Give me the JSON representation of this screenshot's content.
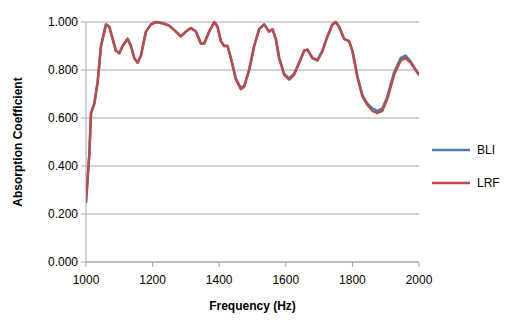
{
  "chart_data": {
    "type": "line",
    "x_label": "Frequency (Hz)",
    "y_label": "Absorption Coefficient",
    "x": [
      1000,
      1010,
      1015,
      1025,
      1035,
      1045,
      1060,
      1070,
      1080,
      1090,
      1100,
      1110,
      1125,
      1135,
      1145,
      1155,
      1165,
      1180,
      1195,
      1210,
      1230,
      1250,
      1270,
      1285,
      1300,
      1315,
      1330,
      1345,
      1355,
      1370,
      1385,
      1395,
      1405,
      1415,
      1425,
      1435,
      1450,
      1465,
      1475,
      1490,
      1505,
      1520,
      1535,
      1550,
      1560,
      1570,
      1580,
      1595,
      1610,
      1625,
      1640,
      1655,
      1665,
      1680,
      1695,
      1710,
      1725,
      1740,
      1750,
      1760,
      1775,
      1790,
      1800,
      1815,
      1830,
      1845,
      1860,
      1875,
      1890,
      1905,
      1925,
      1945,
      1960,
      1975,
      1990,
      2000
    ],
    "series": [
      {
        "name": "BLI",
        "color": "#4a7ebb",
        "values": [
          0.25,
          0.45,
          0.62,
          0.66,
          0.75,
          0.9,
          0.99,
          0.98,
          0.93,
          0.88,
          0.87,
          0.9,
          0.93,
          0.9,
          0.85,
          0.83,
          0.86,
          0.96,
          0.99,
          1.0,
          0.995,
          0.985,
          0.96,
          0.94,
          0.96,
          0.975,
          0.96,
          0.91,
          0.91,
          0.96,
          1.0,
          0.98,
          0.92,
          0.9,
          0.9,
          0.85,
          0.765,
          0.725,
          0.735,
          0.8,
          0.9,
          0.97,
          0.99,
          0.96,
          0.97,
          0.93,
          0.85,
          0.785,
          0.765,
          0.785,
          0.83,
          0.88,
          0.885,
          0.85,
          0.84,
          0.88,
          0.94,
          0.99,
          1.0,
          0.98,
          0.93,
          0.92,
          0.88,
          0.775,
          0.695,
          0.66,
          0.64,
          0.63,
          0.64,
          0.69,
          0.79,
          0.85,
          0.86,
          0.835,
          0.8,
          0.78
        ]
      },
      {
        "name": "LRF",
        "color": "#be4b48",
        "values": [
          0.25,
          0.45,
          0.62,
          0.66,
          0.75,
          0.9,
          0.99,
          0.98,
          0.93,
          0.88,
          0.87,
          0.9,
          0.93,
          0.9,
          0.85,
          0.83,
          0.86,
          0.96,
          0.99,
          1.0,
          0.995,
          0.985,
          0.96,
          0.94,
          0.96,
          0.975,
          0.96,
          0.91,
          0.91,
          0.96,
          1.0,
          0.98,
          0.92,
          0.9,
          0.9,
          0.85,
          0.76,
          0.72,
          0.73,
          0.8,
          0.9,
          0.97,
          0.99,
          0.96,
          0.97,
          0.93,
          0.85,
          0.78,
          0.76,
          0.78,
          0.83,
          0.88,
          0.885,
          0.85,
          0.84,
          0.88,
          0.94,
          0.99,
          1.0,
          0.98,
          0.93,
          0.92,
          0.88,
          0.77,
          0.69,
          0.655,
          0.63,
          0.62,
          0.63,
          0.68,
          0.78,
          0.84,
          0.85,
          0.83,
          0.8,
          0.78
        ]
      }
    ],
    "xlim": [
      1000,
      2000
    ],
    "xticks": [
      1000,
      1200,
      1400,
      1600,
      1800,
      2000
    ],
    "ylim": [
      0,
      1
    ],
    "yticks": [
      {
        "value": 0,
        "label": "0.000"
      },
      {
        "value": 0.2,
        "label": "0.200"
      },
      {
        "value": 0.4,
        "label": "0.400"
      },
      {
        "value": 0.6,
        "label": "0.600"
      },
      {
        "value": 0.8,
        "label": "0.800"
      },
      {
        "value": 1,
        "label": "1.000"
      }
    ],
    "grid": true,
    "legend": "right"
  }
}
